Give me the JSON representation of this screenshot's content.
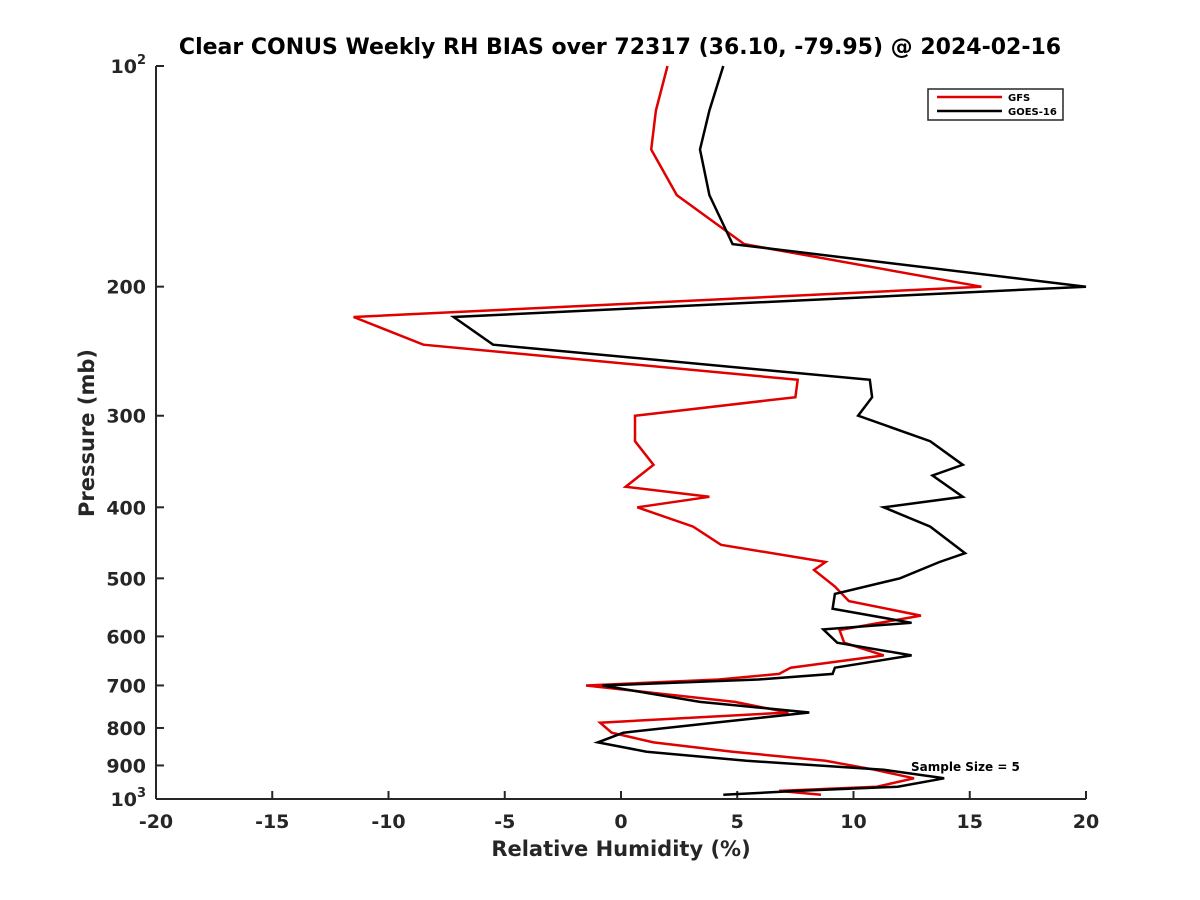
{
  "chart_data": {
    "type": "line",
    "title": "Clear CONUS Weekly RH BIAS over 72317 (36.10, -79.95) @ 2024-02-16",
    "xlabel": "Relative Humidity (%)",
    "ylabel": "Pressure (mb)",
    "xlim": [
      -20,
      20
    ],
    "ylim": [
      100,
      1000
    ],
    "y_scale": "log",
    "y_reversed": true,
    "grid": false,
    "legend_position": "top-right",
    "x_ticks": [
      {
        "value": -20,
        "label": "-20"
      },
      {
        "value": -15,
        "label": "-15"
      },
      {
        "value": -10,
        "label": "-10"
      },
      {
        "value": -5,
        "label": "-5"
      },
      {
        "value": 0,
        "label": "0"
      },
      {
        "value": 5,
        "label": "5"
      },
      {
        "value": 10,
        "label": "10"
      },
      {
        "value": 15,
        "label": "15"
      },
      {
        "value": 20,
        "label": "20"
      }
    ],
    "y_ticks": [
      {
        "value": 100,
        "base": "10",
        "exp": "2"
      },
      {
        "value": 200,
        "label": "200"
      },
      {
        "value": 300,
        "label": "300"
      },
      {
        "value": 400,
        "label": "400"
      },
      {
        "value": 500,
        "label": "500"
      },
      {
        "value": 600,
        "label": "600"
      },
      {
        "value": 700,
        "label": "700"
      },
      {
        "value": 800,
        "label": "800"
      },
      {
        "value": 900,
        "label": "900"
      },
      {
        "value": 1000,
        "base": "10",
        "exp": "3"
      }
    ],
    "annotation": "Sample Size = 5",
    "series": [
      {
        "name": "GFS",
        "color": "#e00000",
        "points": [
          [
            2.0,
            100
          ],
          [
            1.5,
            115
          ],
          [
            1.3,
            130
          ],
          [
            2.4,
            150
          ],
          [
            5.3,
            175
          ],
          [
            15.5,
            200
          ],
          [
            -11.5,
            220
          ],
          [
            -8.5,
            240
          ],
          [
            7.6,
            268
          ],
          [
            7.5,
            283
          ],
          [
            0.6,
            300
          ],
          [
            0.6,
            325
          ],
          [
            1.4,
            350
          ],
          [
            0.2,
            375
          ],
          [
            3.8,
            387
          ],
          [
            0.7,
            400
          ],
          [
            3.1,
            425
          ],
          [
            4.3,
            450
          ],
          [
            8.8,
            475
          ],
          [
            8.3,
            487
          ],
          [
            9.2,
            513
          ],
          [
            9.8,
            537
          ],
          [
            12.9,
            562
          ],
          [
            9.4,
            588
          ],
          [
            9.6,
            612
          ],
          [
            11.3,
            637
          ],
          [
            7.3,
            662
          ],
          [
            6.8,
            675
          ],
          [
            4.2,
            687
          ],
          [
            -1.5,
            700
          ],
          [
            4.9,
            737
          ],
          [
            7.2,
            762
          ],
          [
            -0.9,
            787
          ],
          [
            -0.4,
            812
          ],
          [
            1.4,
            837
          ],
          [
            4.8,
            862
          ],
          [
            8.8,
            887
          ],
          [
            10.9,
            912
          ],
          [
            12.6,
            937
          ],
          [
            11.0,
            962
          ],
          [
            6.8,
            975
          ],
          [
            8.6,
            987
          ]
        ]
      },
      {
        "name": "GOES-16",
        "color": "#000000",
        "points": [
          [
            4.4,
            100
          ],
          [
            3.8,
            115
          ],
          [
            3.4,
            130
          ],
          [
            3.8,
            150
          ],
          [
            4.8,
            175
          ],
          [
            20.0,
            200
          ],
          [
            -7.2,
            220
          ],
          [
            -5.5,
            240
          ],
          [
            10.7,
            268
          ],
          [
            10.8,
            283
          ],
          [
            10.2,
            300
          ],
          [
            13.3,
            325
          ],
          [
            14.7,
            350
          ],
          [
            13.4,
            362
          ],
          [
            14.7,
            387
          ],
          [
            11.3,
            400
          ],
          [
            13.3,
            425
          ],
          [
            14.8,
            462
          ],
          [
            13.7,
            475
          ],
          [
            12.0,
            500
          ],
          [
            9.2,
            525
          ],
          [
            9.1,
            550
          ],
          [
            12.5,
            575
          ],
          [
            8.7,
            587
          ],
          [
            9.3,
            612
          ],
          [
            12.5,
            637
          ],
          [
            9.2,
            662
          ],
          [
            9.1,
            675
          ],
          [
            5.9,
            687
          ],
          [
            -0.8,
            700
          ],
          [
            3.4,
            737
          ],
          [
            8.1,
            762
          ],
          [
            4.0,
            787
          ],
          [
            0.1,
            812
          ],
          [
            -1.0,
            837
          ],
          [
            1.1,
            862
          ],
          [
            5.4,
            887
          ],
          [
            11.3,
            912
          ],
          [
            13.9,
            937
          ],
          [
            11.9,
            962
          ],
          [
            7.6,
            975
          ],
          [
            4.4,
            987
          ]
        ]
      }
    ]
  }
}
